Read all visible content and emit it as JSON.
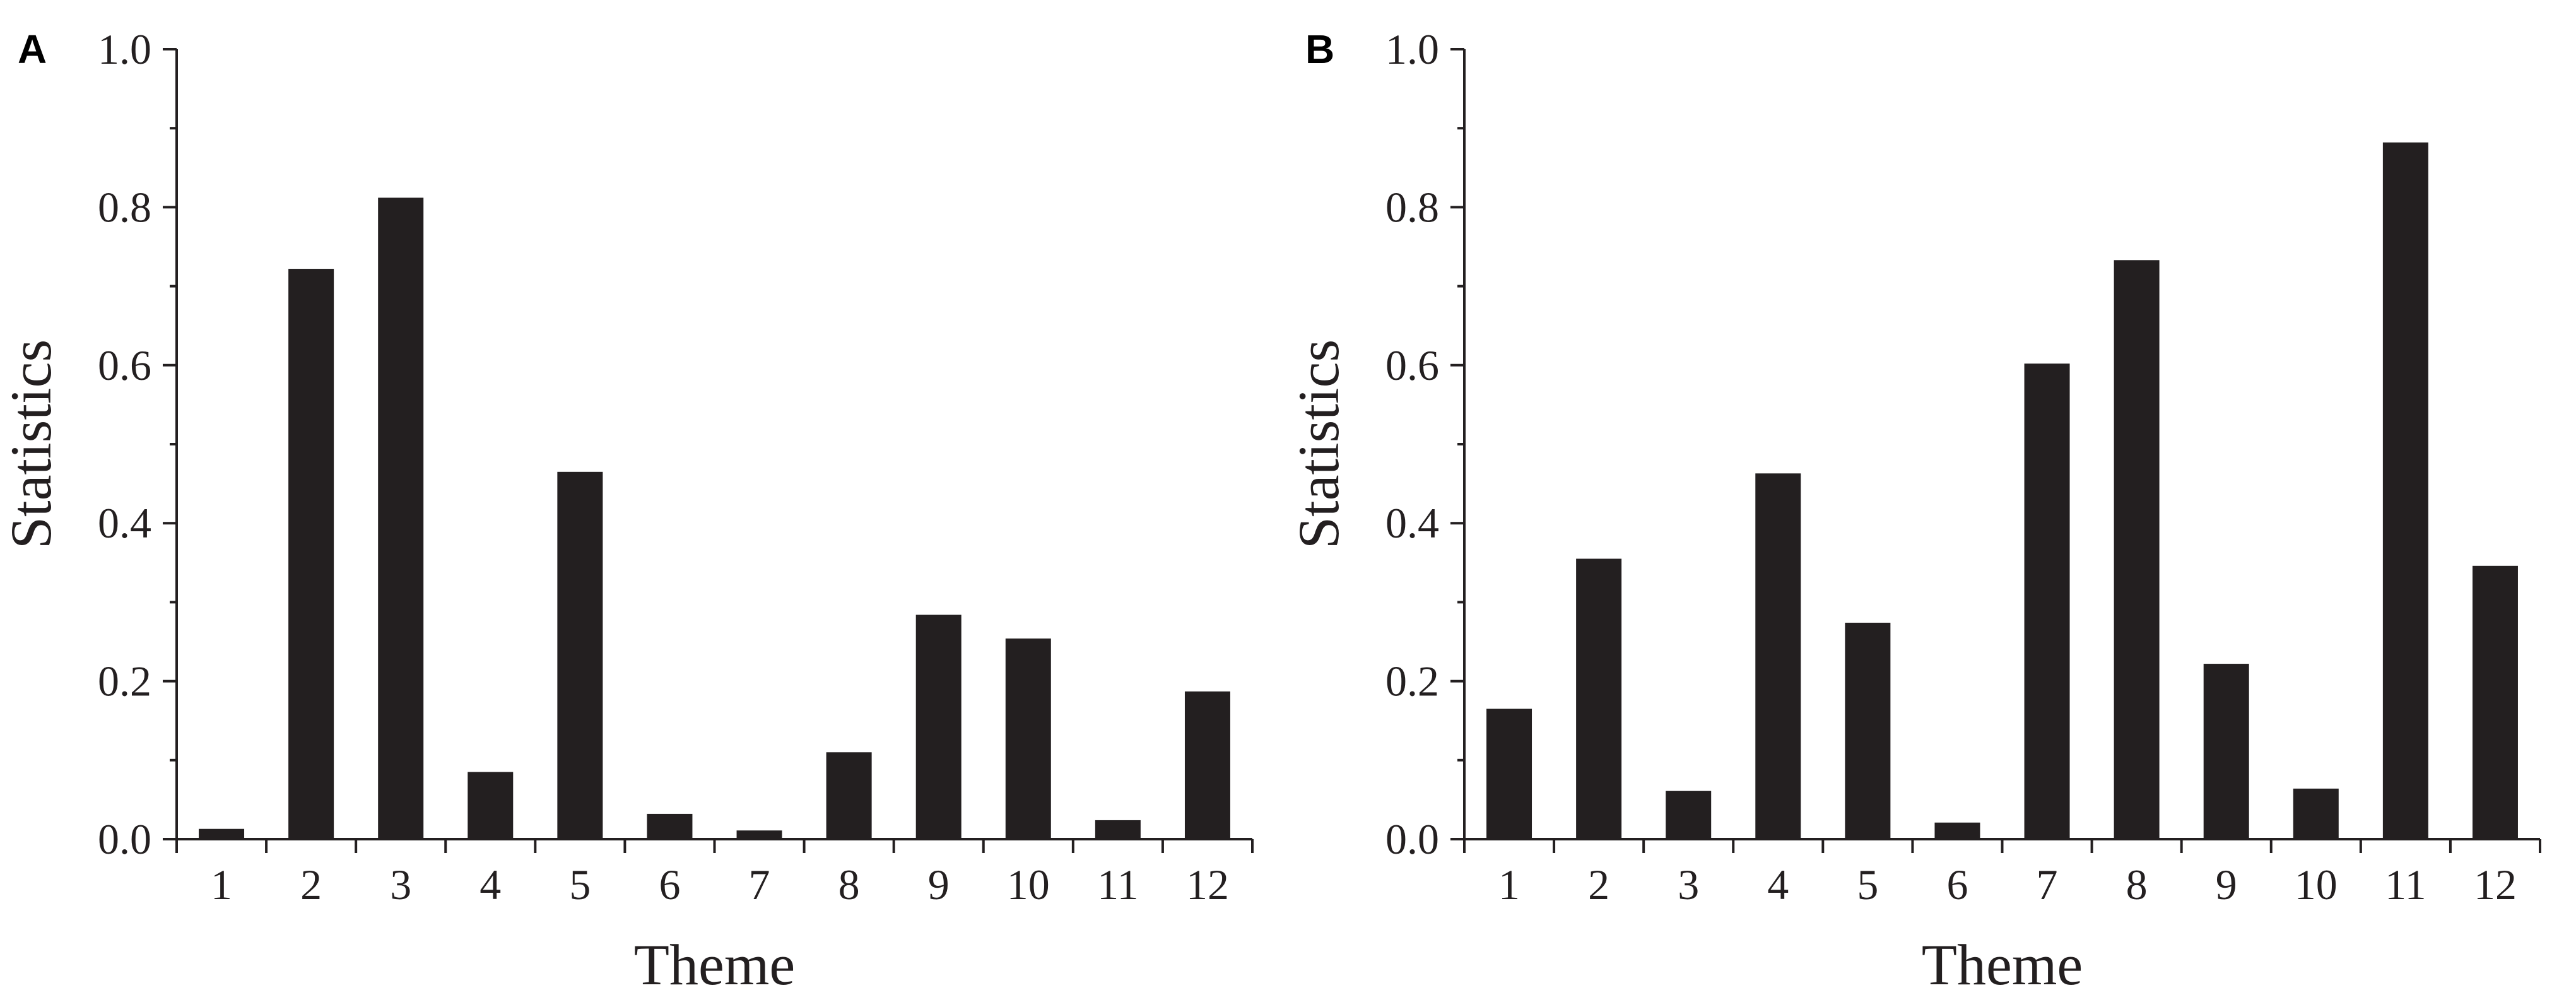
{
  "colors": {
    "bar": "#231f20",
    "axis": "#231f20",
    "background": "#ffffff"
  },
  "chart_data": [
    {
      "panel": "A",
      "type": "bar",
      "categories": [
        "1",
        "2",
        "3",
        "4",
        "5",
        "6",
        "7",
        "8",
        "9",
        "10",
        "11",
        "12"
      ],
      "values": [
        0.013,
        0.722,
        0.812,
        0.085,
        0.465,
        0.032,
        0.011,
        0.11,
        0.284,
        0.254,
        0.024,
        0.187
      ],
      "xlabel": "Theme",
      "ylabel": "Statistics",
      "ylim": [
        0,
        1.0
      ],
      "yticks": [
        "0.0",
        "0.2",
        "0.4",
        "0.6",
        "0.8",
        "1.0"
      ],
      "grid": false
    },
    {
      "panel": "B",
      "type": "bar",
      "categories": [
        "1",
        "2",
        "3",
        "4",
        "5",
        "6",
        "7",
        "8",
        "9",
        "10",
        "11",
        "12"
      ],
      "values": [
        0.165,
        0.355,
        0.061,
        0.463,
        0.274,
        0.021,
        0.602,
        0.733,
        0.222,
        0.064,
        0.882,
        0.346
      ],
      "xlabel": "Theme",
      "ylabel": "Statistics",
      "ylim": [
        0,
        1.0
      ],
      "yticks": [
        "0.0",
        "0.2",
        "0.4",
        "0.6",
        "0.8",
        "1.0"
      ],
      "grid": false
    }
  ]
}
